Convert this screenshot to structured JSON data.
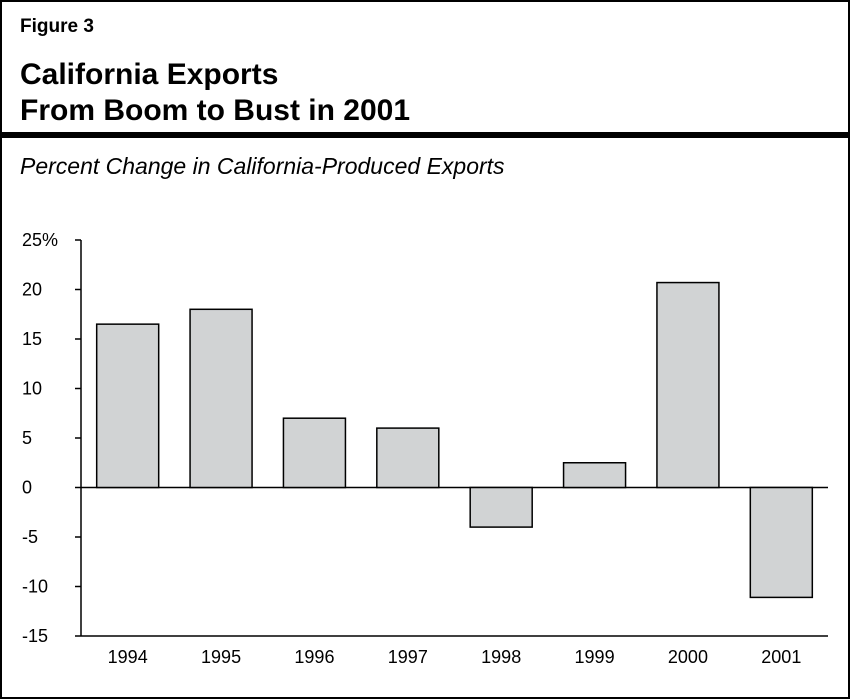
{
  "header": {
    "figure_label": "Figure 3",
    "title_line1": "California Exports",
    "title_line2": "From Boom to Bust in 2001"
  },
  "chart_data": {
    "type": "bar",
    "title": "California Exports From Boom to Bust in 2001",
    "subtitle": "Percent Change in California-Produced Exports",
    "categories": [
      "1994",
      "1995",
      "1996",
      "1997",
      "1998",
      "1999",
      "2000",
      "2001"
    ],
    "values": [
      16.5,
      18,
      7,
      6,
      -4,
      2.5,
      20.7,
      -11.1
    ],
    "xlabel": "",
    "ylabel": "",
    "ylim": [
      -15,
      25
    ],
    "yticks": [
      25,
      20,
      15,
      10,
      5,
      0,
      -5,
      -10,
      -15
    ],
    "ytick_labels": [
      "25%",
      "20",
      "15",
      "10",
      "5",
      "0",
      "-5",
      "-10",
      "-15"
    ],
    "bar_color": "#d1d3d4",
    "grid": false,
    "legend": "none"
  }
}
